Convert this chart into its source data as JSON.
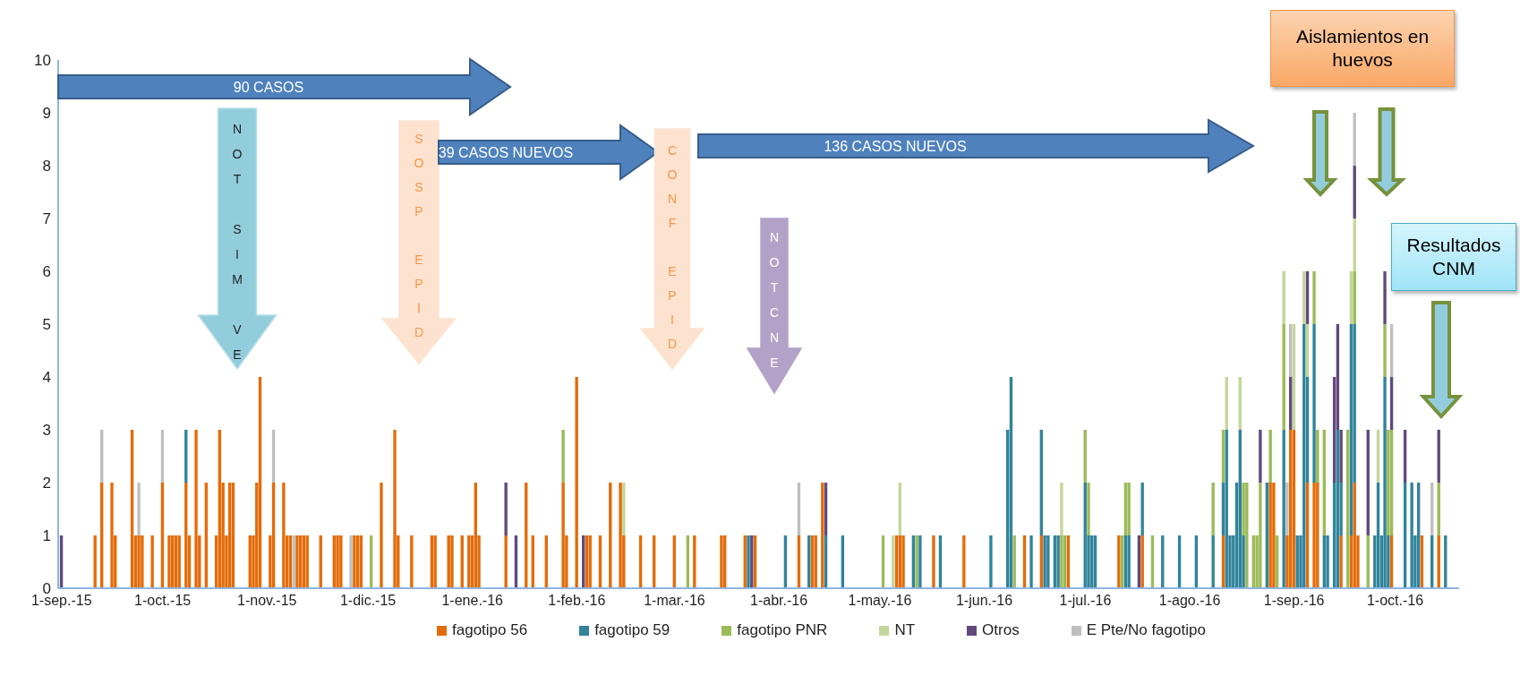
{
  "chart_data": {
    "type": "bar",
    "stacked": true,
    "legend": "bottom",
    "xlim": [
      "2015-08-31",
      "2016-10-20"
    ],
    "xticks": [
      {
        "value": "2015-09-01",
        "label": "1-sep.-15"
      },
      {
        "value": "2015-10-01",
        "label": "1-oct.-15"
      },
      {
        "value": "2015-11-01",
        "label": "1-nov.-15"
      },
      {
        "value": "2015-12-01",
        "label": "1-dic.-15"
      },
      {
        "value": "2016-01-01",
        "label": "1-ene.-16"
      },
      {
        "value": "2016-02-01",
        "label": "1-feb.-16"
      },
      {
        "value": "2016-03-01",
        "label": "1-mar.-16"
      },
      {
        "value": "2016-04-01",
        "label": "1-abr.-16"
      },
      {
        "value": "2016-05-01",
        "label": "1-may.-16"
      },
      {
        "value": "2016-06-01",
        "label": "1-jun.-16"
      },
      {
        "value": "2016-07-01",
        "label": "1-jul.-16"
      },
      {
        "value": "2016-08-01",
        "label": "1-ago.-16"
      },
      {
        "value": "2016-09-01",
        "label": "1-sep.-16"
      },
      {
        "value": "2016-10-01",
        "label": "1-oct.-16"
      }
    ],
    "ylim": [
      0,
      10
    ],
    "yticks": [
      0,
      1,
      2,
      3,
      4,
      5,
      6,
      7,
      8,
      9,
      10
    ],
    "annotations": [
      "90 CASOS",
      "NOT SIM VE",
      "SOSP EPID",
      "39 CASOS NUEVOS",
      "CONF EPID",
      "NOTCNE",
      "136 CASOS NUEVOS",
      "Aislamientos en huevos",
      "Resultados CNM"
    ],
    "x": [
      "2015-09-01",
      "2015-09-11",
      "2015-09-13",
      "2015-09-16",
      "2015-09-17",
      "2015-09-22",
      "2015-09-23",
      "2015-09-24",
      "2015-09-25",
      "2015-09-28",
      "2015-10-01",
      "2015-10-03",
      "2015-10-04",
      "2015-10-05",
      "2015-10-06",
      "2015-10-08",
      "2015-10-09",
      "2015-10-11",
      "2015-10-12",
      "2015-10-14",
      "2015-10-17",
      "2015-10-18",
      "2015-10-19",
      "2015-10-20",
      "2015-10-21",
      "2015-10-22",
      "2015-10-27",
      "2015-10-28",
      "2015-10-29",
      "2015-10-30",
      "2015-11-02",
      "2015-11-03",
      "2015-11-06",
      "2015-11-07",
      "2015-11-08",
      "2015-11-09",
      "2015-11-10",
      "2015-11-11",
      "2015-11-12",
      "2015-11-13",
      "2015-11-17",
      "2015-11-21",
      "2015-11-22",
      "2015-11-23",
      "2015-11-26",
      "2015-11-27",
      "2015-11-28",
      "2015-11-29",
      "2015-12-02",
      "2015-12-05",
      "2015-12-09",
      "2015-12-10",
      "2015-12-14",
      "2015-12-20",
      "2015-12-21",
      "2015-12-25",
      "2015-12-26",
      "2015-12-29",
      "2015-12-31",
      "2016-01-01",
      "2016-01-02",
      "2016-01-03",
      "2016-01-11",
      "2016-01-14",
      "2016-01-17",
      "2016-01-19",
      "2016-01-23",
      "2016-01-28",
      "2016-01-29",
      "2016-02-01",
      "2016-02-03",
      "2016-02-04",
      "2016-02-05",
      "2016-02-08",
      "2016-02-11",
      "2016-02-14",
      "2016-02-15",
      "2016-02-20",
      "2016-02-24",
      "2016-03-01",
      "2016-03-05",
      "2016-03-07",
      "2016-03-15",
      "2016-03-16",
      "2016-03-22",
      "2016-03-23",
      "2016-03-24",
      "2016-03-25",
      "2016-04-03",
      "2016-04-07",
      "2016-04-10",
      "2016-04-11",
      "2016-04-12",
      "2016-04-14",
      "2016-04-15",
      "2016-04-20",
      "2016-05-02",
      "2016-05-05",
      "2016-05-06",
      "2016-05-07",
      "2016-05-08",
      "2016-05-11",
      "2016-05-12",
      "2016-05-13",
      "2016-05-17",
      "2016-05-19",
      "2016-05-26",
      "2016-06-03",
      "2016-06-08",
      "2016-06-09",
      "2016-06-10",
      "2016-06-13",
      "2016-06-15",
      "2016-06-18",
      "2016-06-19",
      "2016-06-20",
      "2016-06-22",
      "2016-06-23",
      "2016-06-24",
      "2016-06-25",
      "2016-06-26",
      "2016-07-01",
      "2016-07-02",
      "2016-07-03",
      "2016-07-04",
      "2016-07-11",
      "2016-07-12",
      "2016-07-13",
      "2016-07-14",
      "2016-07-17",
      "2016-07-18",
      "2016-07-21",
      "2016-07-24",
      "2016-07-29",
      "2016-08-03",
      "2016-08-08",
      "2016-08-11",
      "2016-08-12",
      "2016-08-13",
      "2016-08-14",
      "2016-08-15",
      "2016-08-16",
      "2016-08-17",
      "2016-08-18",
      "2016-08-20",
      "2016-08-21",
      "2016-08-22",
      "2016-08-24",
      "2016-08-25",
      "2016-08-26",
      "2016-08-27",
      "2016-08-29",
      "2016-08-30",
      "2016-08-31",
      "2016-09-01",
      "2016-09-02",
      "2016-09-03",
      "2016-09-04",
      "2016-09-05",
      "2016-09-07",
      "2016-09-08",
      "2016-09-10",
      "2016-09-11",
      "2016-09-13",
      "2016-09-14",
      "2016-09-15",
      "2016-09-17",
      "2016-09-18",
      "2016-09-19",
      "2016-09-20",
      "2016-09-23",
      "2016-09-25",
      "2016-09-26",
      "2016-09-27",
      "2016-09-28",
      "2016-09-29",
      "2016-09-30",
      "2016-10-04",
      "2016-10-06",
      "2016-10-07",
      "2016-10-08",
      "2016-10-09",
      "2016-10-12",
      "2016-10-14",
      "2016-10-16"
    ],
    "series": [
      {
        "name": "fagotipo 56",
        "color": "#e36c0a",
        "values": [
          null,
          1,
          2,
          2,
          1,
          3,
          1,
          1,
          1,
          1,
          2,
          1,
          1,
          1,
          1,
          2,
          1,
          3,
          1,
          2,
          1,
          3,
          2,
          1,
          2,
          2,
          1,
          1,
          2,
          4,
          1,
          2,
          2,
          1,
          1,
          null,
          1,
          1,
          1,
          1,
          1,
          1,
          1,
          1,
          null,
          1,
          1,
          1,
          null,
          2,
          3,
          1,
          1,
          1,
          1,
          1,
          1,
          1,
          1,
          1,
          2,
          1,
          1,
          null,
          2,
          1,
          1,
          2,
          1,
          4,
          null,
          1,
          1,
          1,
          2,
          2,
          1,
          1,
          1,
          1,
          null,
          1,
          1,
          1,
          1,
          null,
          null,
          1,
          null,
          1,
          null,
          1,
          1,
          2,
          null,
          null,
          null,
          null,
          1,
          1,
          1,
          null,
          null,
          null,
          1,
          null,
          1,
          null,
          null,
          null,
          null,
          1,
          null,
          1,
          null,
          null,
          null,
          null,
          null,
          null,
          1,
          null,
          null,
          null,
          null,
          1,
          null,
          null,
          null,
          null,
          1,
          null,
          null,
          null,
          null,
          null,
          1,
          null,
          null,
          null,
          null,
          null,
          null,
          null,
          null,
          null,
          null,
          null,
          2,
          2,
          null,
          null,
          1,
          3,
          3,
          null,
          null,
          null,
          2,
          2,
          2,
          null,
          null,
          null,
          null,
          1,
          null,
          1,
          2,
          1,
          null,
          null,
          null,
          null,
          null,
          null,
          1,
          null,
          null,
          null,
          null,
          1,
          null,
          1,
          null
        ]
      },
      {
        "name": "fagotipo 59",
        "color": "#31849b",
        "values": [
          null,
          null,
          null,
          null,
          null,
          null,
          null,
          null,
          null,
          null,
          null,
          null,
          null,
          null,
          null,
          1,
          null,
          null,
          null,
          null,
          null,
          null,
          null,
          null,
          null,
          null,
          null,
          null,
          null,
          null,
          null,
          null,
          null,
          null,
          null,
          null,
          null,
          null,
          null,
          null,
          null,
          null,
          null,
          null,
          null,
          null,
          null,
          null,
          null,
          null,
          null,
          null,
          null,
          null,
          null,
          null,
          null,
          null,
          null,
          null,
          null,
          null,
          null,
          null,
          null,
          null,
          null,
          null,
          null,
          null,
          null,
          null,
          null,
          null,
          null,
          null,
          null,
          null,
          null,
          null,
          null,
          null,
          null,
          null,
          null,
          1,
          null,
          null,
          1,
          null,
          1,
          null,
          null,
          null,
          1,
          1,
          null,
          null,
          null,
          null,
          null,
          1,
          null,
          1,
          null,
          1,
          null,
          1,
          3,
          4,
          null,
          null,
          1,
          2,
          1,
          1,
          1,
          1,
          null,
          null,
          null,
          2,
          1,
          1,
          1,
          null,
          null,
          1,
          1,
          null,
          1,
          null,
          1,
          1,
          1,
          1,
          1,
          3,
          1,
          1,
          2,
          3,
          1,
          null,
          null,
          null,
          null,
          2,
          null,
          null,
          null,
          3,
          null,
          null,
          null,
          1,
          1,
          5,
          2,
          3,
          null,
          1,
          1,
          2,
          3,
          1,
          null,
          4,
          3,
          null,
          null,
          1,
          2,
          1,
          4,
          1,
          null,
          2,
          2,
          1,
          2,
          null,
          1,
          null,
          1
        ]
      },
      {
        "name": "fagotipo PNR",
        "color": "#9bbb59",
        "values": [
          null,
          null,
          null,
          null,
          null,
          null,
          null,
          null,
          null,
          null,
          null,
          null,
          null,
          null,
          null,
          null,
          null,
          null,
          null,
          null,
          null,
          null,
          null,
          null,
          null,
          null,
          null,
          null,
          null,
          null,
          null,
          null,
          null,
          null,
          null,
          null,
          null,
          null,
          null,
          null,
          null,
          null,
          null,
          null,
          null,
          null,
          null,
          null,
          1,
          null,
          null,
          null,
          null,
          null,
          null,
          null,
          null,
          null,
          null,
          null,
          null,
          null,
          null,
          null,
          null,
          null,
          null,
          1,
          null,
          null,
          null,
          null,
          null,
          null,
          null,
          null,
          null,
          null,
          null,
          null,
          1,
          null,
          null,
          null,
          null,
          null,
          null,
          null,
          null,
          null,
          null,
          null,
          null,
          null,
          null,
          null,
          1,
          null,
          null,
          null,
          null,
          null,
          1,
          null,
          null,
          null,
          null,
          null,
          null,
          null,
          1,
          null,
          null,
          null,
          null,
          null,
          null,
          null,
          1,
          1,
          null,
          1,
          1,
          null,
          null,
          null,
          1,
          1,
          1,
          null,
          null,
          1,
          null,
          null,
          null,
          1,
          1,
          null,
          null,
          null,
          null,
          null,
          1,
          2,
          1,
          1,
          2,
          null,
          1,
          null,
          1,
          2,
          null,
          null,
          null,
          null,
          null,
          null,
          null,
          1,
          1,
          2,
          null,
          null,
          null,
          null,
          3,
          null,
          1,
          null,
          1,
          null,
          null,
          null,
          1,
          2,
          2,
          null,
          null,
          null,
          null,
          null,
          null,
          1,
          null
        ]
      },
      {
        "name": "NT",
        "color": "#c3d69b",
        "values": [
          null,
          null,
          null,
          null,
          null,
          null,
          null,
          null,
          null,
          null,
          null,
          null,
          null,
          null,
          null,
          null,
          null,
          null,
          null,
          null,
          null,
          null,
          null,
          null,
          null,
          null,
          null,
          null,
          null,
          null,
          null,
          null,
          null,
          null,
          null,
          null,
          null,
          null,
          null,
          null,
          null,
          null,
          null,
          null,
          null,
          null,
          null,
          null,
          null,
          null,
          null,
          null,
          null,
          null,
          null,
          null,
          null,
          null,
          null,
          null,
          null,
          null,
          null,
          null,
          null,
          null,
          null,
          null,
          null,
          null,
          null,
          null,
          null,
          null,
          null,
          null,
          1,
          null,
          null,
          null,
          null,
          null,
          null,
          null,
          null,
          null,
          null,
          null,
          null,
          null,
          null,
          null,
          null,
          null,
          null,
          null,
          null,
          1,
          null,
          1,
          null,
          null,
          null,
          null,
          null,
          null,
          null,
          null,
          null,
          null,
          null,
          null,
          null,
          null,
          null,
          null,
          null,
          null,
          1,
          null,
          null,
          null,
          null,
          null,
          null,
          null,
          null,
          null,
          null,
          null,
          null,
          null,
          null,
          null,
          null,
          null,
          null,
          1,
          null,
          null,
          null,
          1,
          null,
          null,
          null,
          null,
          null,
          null,
          null,
          null,
          null,
          1,
          null,
          null,
          2,
          null,
          null,
          1,
          1,
          null,
          null,
          null,
          null,
          null,
          null,
          null,
          null,
          1,
          1,
          null,
          null,
          null,
          1,
          null,
          null,
          null,
          null,
          null,
          null,
          null,
          null,
          null,
          null,
          null,
          null
        ]
      },
      {
        "name": "Otros",
        "color": "#604a7b",
        "values": [
          1,
          null,
          null,
          null,
          null,
          null,
          null,
          null,
          null,
          null,
          null,
          null,
          null,
          null,
          null,
          null,
          null,
          null,
          null,
          null,
          null,
          null,
          null,
          null,
          null,
          null,
          null,
          null,
          null,
          null,
          null,
          null,
          null,
          null,
          null,
          null,
          null,
          null,
          null,
          null,
          null,
          null,
          null,
          null,
          null,
          null,
          null,
          null,
          null,
          null,
          null,
          null,
          null,
          null,
          null,
          null,
          null,
          null,
          null,
          null,
          null,
          null,
          1,
          1,
          null,
          null,
          null,
          null,
          null,
          null,
          1,
          null,
          null,
          null,
          null,
          null,
          null,
          null,
          null,
          null,
          null,
          null,
          null,
          null,
          null,
          null,
          1,
          null,
          null,
          null,
          null,
          null,
          null,
          null,
          1,
          null,
          null,
          null,
          null,
          null,
          null,
          null,
          null,
          null,
          null,
          null,
          null,
          null,
          null,
          null,
          null,
          null,
          null,
          null,
          null,
          null,
          null,
          null,
          null,
          null,
          null,
          null,
          null,
          null,
          null,
          null,
          null,
          null,
          null,
          1,
          null,
          null,
          null,
          null,
          null,
          null,
          null,
          null,
          null,
          null,
          null,
          null,
          null,
          null,
          null,
          null,
          1,
          null,
          null,
          null,
          null,
          null,
          null,
          1,
          null,
          null,
          null,
          null,
          1,
          null,
          null,
          null,
          null,
          2,
          2,
          1,
          null,
          null,
          1,
          null,
          2,
          null,
          null,
          null,
          1,
          null,
          1,
          1,
          null,
          null,
          null,
          null,
          null,
          1,
          null
        ]
      },
      {
        "name": "E Pte/No fagotipo",
        "color": "#bfbfbf",
        "values": [
          null,
          null,
          1,
          null,
          null,
          null,
          null,
          1,
          null,
          null,
          1,
          null,
          null,
          null,
          null,
          null,
          null,
          null,
          null,
          null,
          null,
          null,
          null,
          null,
          null,
          null,
          null,
          null,
          null,
          null,
          null,
          1,
          null,
          null,
          null,
          1,
          null,
          null,
          null,
          null,
          null,
          null,
          null,
          null,
          1,
          null,
          null,
          null,
          null,
          null,
          null,
          null,
          null,
          null,
          null,
          null,
          null,
          null,
          null,
          null,
          null,
          null,
          null,
          null,
          null,
          null,
          null,
          null,
          null,
          null,
          null,
          null,
          null,
          null,
          null,
          null,
          null,
          null,
          null,
          null,
          null,
          null,
          null,
          null,
          null,
          null,
          null,
          null,
          null,
          1,
          null,
          null,
          null,
          null,
          null,
          null,
          null,
          null,
          null,
          null,
          null,
          null,
          null,
          null,
          null,
          null,
          null,
          null,
          null,
          null,
          null,
          null,
          null,
          null,
          null,
          null,
          null,
          null,
          null,
          null,
          null,
          null,
          null,
          null,
          null,
          null,
          null,
          null,
          null,
          null,
          null,
          null,
          null,
          null,
          null,
          null,
          null,
          null,
          null,
          null,
          null,
          null,
          null,
          null,
          null,
          null,
          null,
          null,
          null,
          null,
          null,
          null,
          1,
          1,
          null,
          null,
          null,
          null,
          null,
          null,
          null,
          null,
          null,
          null,
          null,
          null,
          null,
          null,
          1,
          null,
          null,
          null,
          null,
          null,
          null,
          null,
          1,
          null,
          null,
          null,
          null,
          null,
          1,
          null,
          null
        ]
      }
    ]
  }
}
